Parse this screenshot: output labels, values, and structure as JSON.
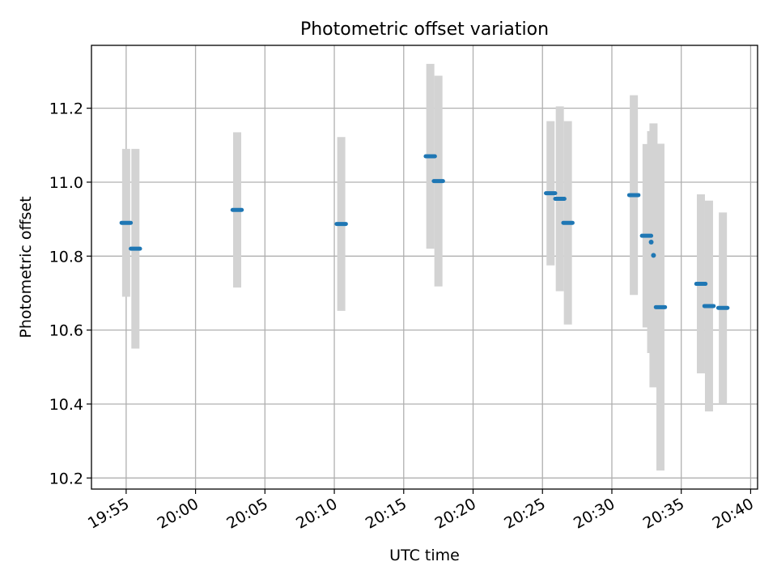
{
  "chart_data": {
    "type": "scatter",
    "title": "Photometric offset variation",
    "xlabel": "UTC time",
    "ylabel": "Photometric offset",
    "x_ticks": [
      "19:55",
      "20:00",
      "20:05",
      "20:10",
      "20:15",
      "20:20",
      "20:25",
      "20:30",
      "20:35",
      "20:40"
    ],
    "xlim": [
      "19:52:30",
      "20:40:30"
    ],
    "y_ticks": [
      "10.2",
      "10.4",
      "10.6",
      "10.8",
      "11.0",
      "11.2"
    ],
    "ylim": [
      10.17,
      11.37
    ],
    "grid": true,
    "colors": {
      "point": "#1f77b4",
      "errorbar": "#d3d3d3",
      "grid": "#b0b0b0"
    },
    "points": [
      {
        "x": "19:55:00",
        "y": 10.89,
        "yerr": 0.2,
        "x_span": [
          -20,
          20
        ]
      },
      {
        "x": "19:55:40",
        "y": 10.82,
        "yerr": 0.27,
        "x_span": [
          -20,
          20
        ]
      },
      {
        "x": "20:03:00",
        "y": 10.925,
        "yerr": 0.21,
        "x_span": [
          -20,
          20
        ]
      },
      {
        "x": "20:10:30",
        "y": 10.887,
        "yerr": 0.235,
        "x_span": [
          -20,
          20
        ]
      },
      {
        "x": "20:16:55",
        "y": 11.07,
        "yerr": 0.25,
        "x_span": [
          -20,
          20
        ]
      },
      {
        "x": "20:17:30",
        "y": 11.003,
        "yerr": 0.285,
        "x_span": [
          -20,
          20
        ]
      },
      {
        "x": "20:25:35",
        "y": 10.97,
        "yerr": 0.195,
        "x_span": [
          -20,
          20
        ]
      },
      {
        "x": "20:26:15",
        "y": 10.955,
        "yerr": 0.25,
        "x_span": [
          -20,
          20
        ]
      },
      {
        "x": "20:26:50",
        "y": 10.89,
        "yerr": 0.275,
        "x_span": [
          -20,
          20
        ]
      },
      {
        "x": "20:31:35",
        "y": 10.965,
        "yerr": 0.27,
        "x_span": [
          -20,
          20
        ]
      },
      {
        "x": "20:32:30",
        "y": 10.855,
        "yerr": 0.248,
        "x_span": [
          -20,
          20
        ]
      },
      {
        "x": "20:32:50",
        "y": 10.838,
        "yerr": 0.3,
        "x_span": [
          0,
          0
        ]
      },
      {
        "x": "20:33:00",
        "y": 10.802,
        "yerr": 0.357,
        "x_span": [
          0,
          0
        ]
      },
      {
        "x": "20:33:30",
        "y": 10.662,
        "yerr": 0.442,
        "x_span": [
          -20,
          20
        ]
      },
      {
        "x": "20:36:25",
        "y": 10.725,
        "yerr": 0.242,
        "x_span": [
          -20,
          20
        ]
      },
      {
        "x": "20:37:00",
        "y": 10.665,
        "yerr": 0.285,
        "x_span": [
          -20,
          20
        ]
      },
      {
        "x": "20:38:00",
        "y": 10.66,
        "yerr": 0.258,
        "x_span": [
          -20,
          20
        ]
      }
    ]
  }
}
